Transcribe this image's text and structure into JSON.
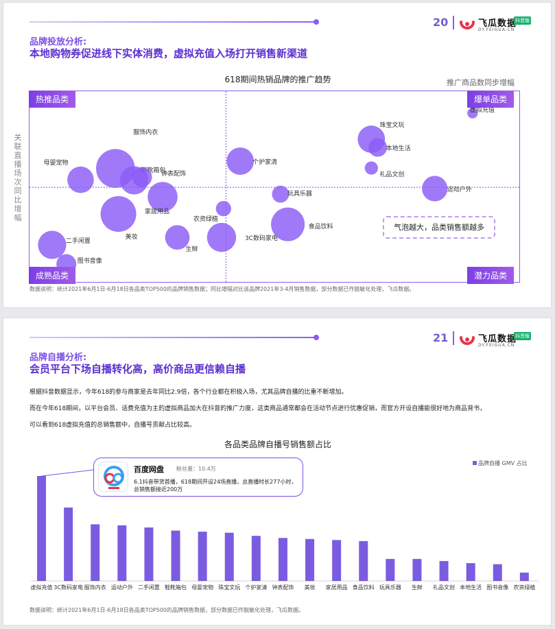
{
  "brand": {
    "name": "飞瓜数据",
    "badge": "抖音版",
    "url": "DY.FEIGUA.CN",
    "accent": "#8b5cf6",
    "title_color": "#5b2fd0"
  },
  "slide1": {
    "page_number": "20",
    "section_label": "品牌投放分析:",
    "title": "本地购物券促进线下实体消费，虚拟充值入场打开销售新渠道",
    "chart_title": "618期间热销品牌的推广趋势",
    "x_axis_label": "推广商品数同步增幅",
    "y_axis_label": "关联直播场次同比增幅",
    "quadrants": {
      "top_left": "热推品类",
      "top_right": "爆单品类",
      "bottom_left": "成熟品类",
      "bottom_right": "潜力品类"
    },
    "callout": "气泡越大，品类销售额越多",
    "note": "数据说明：统计2021年6月1日-6月18日各品类TOP500的品牌销售数据；同比增幅对比该品牌2021年3-4月销售数据，部分数据已作脱敏化处理，飞瓜数据。"
  },
  "slide2": {
    "page_number": "21",
    "section_label": "品牌自播分析:",
    "title": "会员平台下场自播转化高，高价商品更信赖自播",
    "paragraphs": [
      "根据抖音数据显示，今年618的参与商家是去年同比2.9倍，各个行业都在积极入场，尤其品牌自播的比重不断增加。",
      "而在今年618期间，以平台会员、话费充值为主的虚拟商品加大在抖音的推广力度，这类商品通常都会在活动节点进行优惠促销，而官方开设自播能很好地为商品背书，",
      "可以看到618虚拟充值的总销售额中，自播号贡献占比较高。"
    ],
    "chart_title": "各品类品牌自播号销售额占比",
    "legend": "品牌自播 GMV 占比",
    "card": {
      "name": "百度网盘",
      "fans": "粉丝量：10.4万",
      "desc_line1": "6.1抖音带货首播，618期间开设24场直播，总直播时长277小时，",
      "desc_line2": "总销售额接近200万"
    },
    "note": "数据说明：统计2021年6月1日-6月18日各品类TOP500的品牌销售数据，部分数据已作脱敏化处理，飞瓜数据。"
  },
  "chart_data": [
    {
      "type": "scatter",
      "title": "618期间热销品牌的推广趋势",
      "xlabel": "推广商品数同步增幅",
      "ylabel": "关联直播场次同比增幅",
      "quadrant_labels": [
        "热推品类",
        "爆单品类",
        "成熟品类",
        "潜力品类"
      ],
      "bubble_color": "#8b5cf6",
      "note": "x/y are relative positions on an unlabeled scale (0-100, crosshair at x=40, y=50); size is relative sales",
      "points": [
        {
          "name": "服饰内衣",
          "x": 17.5,
          "y": 59.8,
          "size": 29
        },
        {
          "name": "鞋靴箱包",
          "x": 21.3,
          "y": 53.6,
          "size": 14
        },
        {
          "name": "钟表配饰",
          "x": 22.9,
          "y": 55.3,
          "size": 6
        },
        {
          "name": "母婴宠物",
          "x": 10.4,
          "y": 53.9,
          "size": 12
        },
        {
          "name": "家居用品",
          "x": 27.1,
          "y": 45.0,
          "size": 16
        },
        {
          "name": "美妆",
          "x": 18.1,
          "y": 36.1,
          "size": 24
        },
        {
          "name": "农资绿植",
          "x": 39.5,
          "y": 38.9,
          "size": 3
        },
        {
          "name": "个护家清",
          "x": 42.9,
          "y": 63.6,
          "size": 13
        },
        {
          "name": "二手闲置",
          "x": 4.6,
          "y": 20.0,
          "size": 14
        },
        {
          "name": "图书音像",
          "x": 7.5,
          "y": 10.0,
          "size": 6
        },
        {
          "name": "生鲜",
          "x": 30.1,
          "y": 23.9,
          "size": 10
        },
        {
          "name": "3C数码家电",
          "x": 39.1,
          "y": 23.9,
          "size": 15
        },
        {
          "name": "食品饮料",
          "x": 52.6,
          "y": 30.7,
          "size": 21
        },
        {
          "name": "玩具乐器",
          "x": 51.1,
          "y": 46.4,
          "size": 4
        },
        {
          "name": "珠宝文玩",
          "x": 69.6,
          "y": 75.0,
          "size": 13
        },
        {
          "name": "本地生活",
          "x": 70.9,
          "y": 70.7,
          "size": 5
        },
        {
          "name": "礼品文创",
          "x": 69.6,
          "y": 60.0,
          "size": 2
        },
        {
          "name": "虚拟充值",
          "x": 90.2,
          "y": 88.6,
          "size": 1
        },
        {
          "name": "运动户外",
          "x": 82.5,
          "y": 49.3,
          "size": 11
        }
      ]
    },
    {
      "type": "bar",
      "title": "各品类品牌自播号销售额占比",
      "series": [
        {
          "name": "品牌自播 GMV 占比",
          "color": "#7b5ce0"
        }
      ],
      "categories": [
        "虚拟充值",
        "3C数码家电",
        "服饰内衣",
        "运动户外",
        "二手闲置",
        "鞋靴箱包",
        "母婴宠物",
        "珠宝文玩",
        "个护家清",
        "钟表配饰",
        "美妆",
        "家居用品",
        "食品饮料",
        "玩具乐器",
        "生鲜",
        "礼品文创",
        "本地生活",
        "图书音像",
        "农资绿植"
      ],
      "values": [
        100,
        70,
        54,
        53,
        51,
        48,
        47,
        46,
        43,
        41,
        40,
        39,
        38,
        21,
        21,
        19,
        17,
        16,
        8
      ],
      "ylim": [
        0,
        100
      ]
    }
  ]
}
